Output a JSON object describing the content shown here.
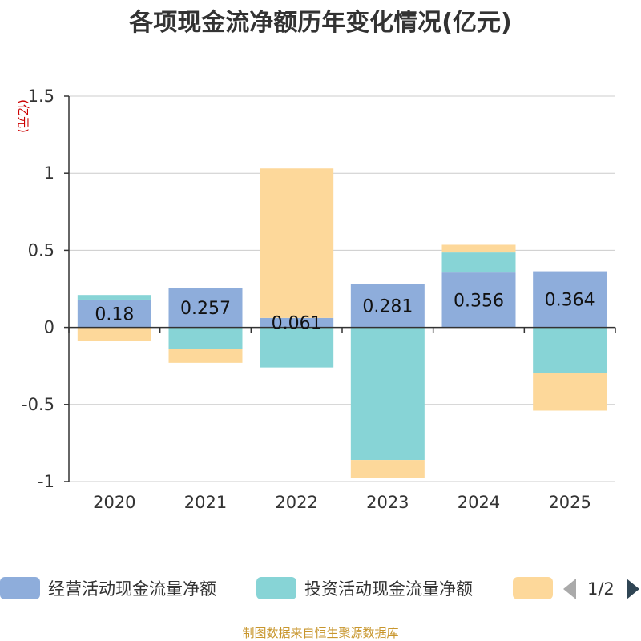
{
  "chart_data": {
    "type": "bar",
    "stacked": true,
    "title": "各项现金流净额历年变化情况(亿元)",
    "ylabel": "(亿元)",
    "categories": [
      "2020",
      "2021",
      "2022",
      "2023",
      "2024",
      "2025"
    ],
    "series": [
      {
        "name": "经营活动现金流量净额",
        "color": "#8eaddb",
        "values": [
          0.18,
          0.257,
          0.061,
          0.281,
          0.356,
          0.364
        ]
      },
      {
        "name": "投资活动现金流量净额",
        "color": "#87d4d6",
        "values": [
          0.03,
          -0.14,
          -0.26,
          -0.86,
          0.13,
          -0.295
        ]
      },
      {
        "name": "",
        "color": "#fdd89a",
        "values": [
          -0.09,
          -0.09,
          0.97,
          -0.115,
          0.05,
          -0.245
        ]
      }
    ],
    "data_labels": [
      "0.18",
      "0.257",
      "0.061",
      "0.281",
      "0.356",
      "0.364"
    ],
    "yticks": [
      1.5,
      1,
      0.5,
      0,
      -0.5,
      -1
    ],
    "ytick_labels": [
      "1.5",
      "1",
      "0.5",
      "0",
      "-0.5",
      "-1"
    ],
    "ylim": [
      -1,
      1.5
    ],
    "legend": {
      "position": "bottom",
      "page": "1/2"
    },
    "source": "制图数据来自恒生聚源数据库"
  }
}
